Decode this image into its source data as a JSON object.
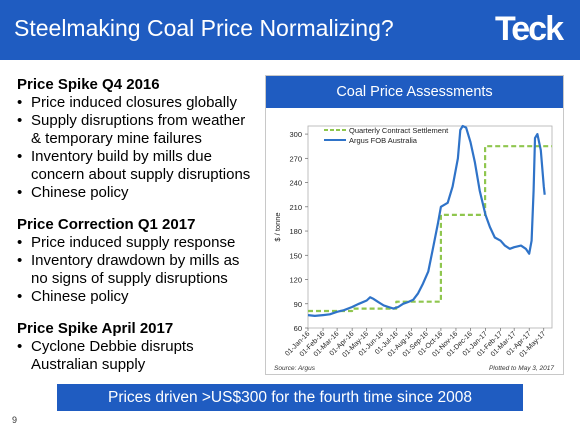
{
  "header": {
    "title": "Steelmaking Coal Price Normalizing?",
    "logo": "Teck"
  },
  "sections": [
    {
      "heading": "Price Spike Q4 2016",
      "bullets": [
        "Price induced closures globally",
        "Supply disruptions from weather",
        "& temporary mine failures",
        "Inventory build by mills due",
        "concern about supply disruptions",
        "Chinese policy"
      ]
    },
    {
      "heading": "Price Correction Q1 2017",
      "bullets": [
        "Price induced supply response",
        "Inventory drawdown by mills as",
        "no signs of supply disruptions",
        "Chinese policy"
      ]
    },
    {
      "heading": "Price Spike April 2017",
      "bullets": [
        "Cyclone Debbie disrupts",
        "Australian supply"
      ]
    }
  ],
  "banner": "Prices driven >US$300 for the fourth time since 2008",
  "page_number": "9",
  "colors": {
    "brand": "#1f5cc1",
    "contract": "#8fc64e",
    "argus": "#2f73c8"
  },
  "chart_data": {
    "type": "line",
    "title": "Coal Price Assessments",
    "ylabel": "$ / tonne",
    "source": "Source: Argus",
    "plotted": "Plotted to May 3, 2017",
    "ylim": [
      60,
      310
    ],
    "yticks": [
      60,
      90,
      120,
      150,
      180,
      210,
      240,
      270,
      300
    ],
    "xlim": [
      "2016-01-01",
      "2017-05-18"
    ],
    "xtick_labels": [
      {
        "label": "01-Jan-16",
        "date": "2016-01-01"
      },
      {
        "label": "01-Feb-16",
        "date": "2016-02-01"
      },
      {
        "label": "01-Mar-16",
        "date": "2016-03-01"
      },
      {
        "label": "01-Apr-16",
        "date": "2016-04-01"
      },
      {
        "label": "01-May-16",
        "date": "2016-05-01"
      },
      {
        "label": "01-Jun-16",
        "date": "2016-06-01"
      },
      {
        "label": "01-Jul-16",
        "date": "2016-07-01"
      },
      {
        "label": "01-Aug-16",
        "date": "2016-08-01"
      },
      {
        "label": "01-Sep-16",
        "date": "2016-09-01"
      },
      {
        "label": "01-Oct-16",
        "date": "2016-10-01"
      },
      {
        "label": "01-Nov-16",
        "date": "2016-11-01"
      },
      {
        "label": "01-Dec-16",
        "date": "2016-12-01"
      },
      {
        "label": "01-Jan-17",
        "date": "2017-01-01"
      },
      {
        "label": "01-Feb-17",
        "date": "2017-02-01"
      },
      {
        "label": "01-Mar-17",
        "date": "2017-03-01"
      },
      {
        "label": "01-Apr-17",
        "date": "2017-04-01"
      },
      {
        "label": "01-May-17",
        "date": "2017-05-01"
      }
    ],
    "legend_position": "top-left",
    "series": [
      {
        "name": "Quarterly Contract Settlement",
        "style": "dashed",
        "points": [
          [
            "2016-01-01",
            81
          ],
          [
            "2016-04-01",
            81
          ],
          [
            "2016-04-01",
            84
          ],
          [
            "2016-07-01",
            84
          ],
          [
            "2016-07-01",
            92.5
          ],
          [
            "2016-10-01",
            92.5
          ],
          [
            "2016-10-01",
            200
          ],
          [
            "2016-12-31",
            200
          ],
          [
            "2016-12-31",
            285
          ],
          [
            "2017-05-18",
            285
          ]
        ]
      },
      {
        "name": "Argus FOB Australia",
        "style": "solid",
        "points": [
          [
            "2016-01-01",
            76
          ],
          [
            "2016-01-15",
            75
          ],
          [
            "2016-02-01",
            76
          ],
          [
            "2016-02-15",
            77
          ],
          [
            "2016-03-01",
            80
          ],
          [
            "2016-03-15",
            82
          ],
          [
            "2016-04-01",
            86
          ],
          [
            "2016-04-15",
            90
          ],
          [
            "2016-05-01",
            94
          ],
          [
            "2016-05-08",
            98
          ],
          [
            "2016-05-15",
            96
          ],
          [
            "2016-05-25",
            92
          ],
          [
            "2016-06-05",
            88
          ],
          [
            "2016-06-15",
            86
          ],
          [
            "2016-06-25",
            84
          ],
          [
            "2016-07-05",
            86
          ],
          [
            "2016-07-15",
            90
          ],
          [
            "2016-07-25",
            92
          ],
          [
            "2016-08-05",
            95
          ],
          [
            "2016-08-15",
            103
          ],
          [
            "2016-08-25",
            115
          ],
          [
            "2016-09-05",
            130
          ],
          [
            "2016-09-15",
            160
          ],
          [
            "2016-09-25",
            190
          ],
          [
            "2016-10-01",
            210
          ],
          [
            "2016-10-15",
            215
          ],
          [
            "2016-10-25",
            235
          ],
          [
            "2016-11-05",
            270
          ],
          [
            "2016-11-10",
            305
          ],
          [
            "2016-11-15",
            310
          ],
          [
            "2016-11-22",
            308
          ],
          [
            "2016-12-01",
            290
          ],
          [
            "2016-12-10",
            265
          ],
          [
            "2016-12-20",
            230
          ],
          [
            "2017-01-01",
            200
          ],
          [
            "2017-01-10",
            185
          ],
          [
            "2017-01-20",
            172
          ],
          [
            "2017-02-01",
            168
          ],
          [
            "2017-02-10",
            162
          ],
          [
            "2017-02-20",
            158
          ],
          [
            "2017-03-01",
            160
          ],
          [
            "2017-03-15",
            162
          ],
          [
            "2017-03-25",
            158
          ],
          [
            "2017-04-01",
            152
          ],
          [
            "2017-04-06",
            168
          ],
          [
            "2017-04-10",
            230
          ],
          [
            "2017-04-13",
            295
          ],
          [
            "2017-04-18",
            300
          ],
          [
            "2017-04-25",
            280
          ],
          [
            "2017-05-01",
            235
          ],
          [
            "2017-05-03",
            225
          ]
        ]
      }
    ]
  }
}
